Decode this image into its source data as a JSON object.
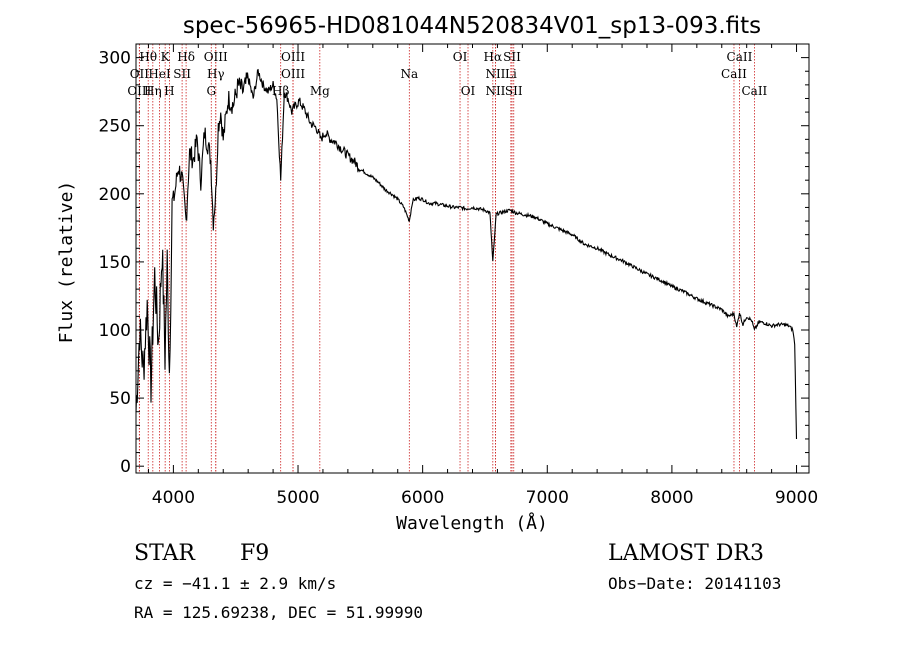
{
  "chart_data": {
    "type": "line",
    "title": "spec-56965-HD081044N520834V01_sp13-093.fits",
    "xlabel": "Wavelength (Å)",
    "ylabel": "Flux (relative)",
    "xlim": [
      3700,
      9100
    ],
    "ylim": [
      -5,
      310
    ],
    "xticks": [
      4000,
      5000,
      6000,
      7000,
      8000,
      9000
    ],
    "yticks": [
      0,
      50,
      100,
      150,
      200,
      250,
      300
    ],
    "xtick_labels": [
      "4000",
      "5000",
      "6000",
      "7000",
      "8000",
      "9000"
    ],
    "ytick_labels": [
      "0",
      "50",
      "100",
      "150",
      "200",
      "250",
      "300"
    ],
    "series": [
      {
        "name": "flux",
        "x": [
          3700,
          3730,
          3760,
          3790,
          3820,
          3850,
          3880,
          3910,
          3933,
          3950,
          3968,
          3990,
          4010,
          4040,
          4070,
          4102,
          4130,
          4160,
          4190,
          4220,
          4250,
          4280,
          4300,
          4320,
          4340,
          4360,
          4380,
          4400,
          4440,
          4480,
          4520,
          4560,
          4600,
          4640,
          4680,
          4720,
          4760,
          4800,
          4830,
          4861,
          4890,
          4920,
          4950,
          4980,
          5010,
          5050,
          5100,
          5150,
          5183,
          5220,
          5260,
          5300,
          5350,
          5400,
          5450,
          5500,
          5550,
          5600,
          5650,
          5700,
          5750,
          5800,
          5850,
          5893,
          5920,
          5960,
          6000,
          6050,
          6100,
          6150,
          6200,
          6250,
          6300,
          6350,
          6400,
          6450,
          6500,
          6540,
          6563,
          6590,
          6620,
          6660,
          6700,
          6750,
          6800,
          6850,
          6900,
          7000,
          7100,
          7200,
          7300,
          7400,
          7500,
          7600,
          7700,
          7800,
          7900,
          8000,
          8100,
          8200,
          8300,
          8400,
          8450,
          8498,
          8520,
          8542,
          8570,
          8600,
          8640,
          8662,
          8700,
          8750,
          8800,
          8850,
          8900,
          8940,
          8970,
          8985,
          9000
        ],
        "values": [
          40,
          100,
          70,
          120,
          60,
          140,
          90,
          160,
          80,
          150,
          70,
          190,
          200,
          220,
          210,
          180,
          230,
          225,
          240,
          210,
          245,
          235,
          225,
          180,
          200,
          250,
          260,
          240,
          270,
          265,
          280,
          275,
          285,
          270,
          290,
          280,
          275,
          280,
          270,
          210,
          275,
          270,
          260,
          265,
          268,
          262,
          252,
          248,
          240,
          245,
          240,
          238,
          233,
          228,
          224,
          218,
          215,
          212,
          208,
          203,
          200,
          196,
          190,
          180,
          195,
          197,
          196,
          193,
          193,
          192,
          191,
          190,
          190,
          189,
          190,
          189,
          188,
          186,
          150,
          185,
          186,
          187,
          188,
          186,
          185,
          184,
          183,
          178,
          174,
          170,
          163,
          160,
          155,
          151,
          146,
          141,
          137,
          132,
          128,
          123,
          119,
          115,
          110,
          112,
          102,
          113,
          104,
          110,
          107,
          100,
          106,
          105,
          103,
          104,
          104,
          103,
          100,
          90,
          20
        ]
      }
    ],
    "line_ids": [
      {
        "label": "Hθ",
        "x": 3798,
        "row": 1
      },
      {
        "label": "OII",
        "x": 3727,
        "row": 2
      },
      {
        "label": "OIII",
        "x": 3727,
        "row": 3
      },
      {
        "label": "K",
        "x": 3934,
        "row": 1
      },
      {
        "label": "HeI",
        "x": 3889,
        "row": 2
      },
      {
        "label": "Hη",
        "x": 3835,
        "row": 3
      },
      {
        "label": "SII",
        "x": 4070,
        "row": 2
      },
      {
        "label": "H",
        "x": 3968,
        "row": 3
      },
      {
        "label": "Hδ",
        "x": 4102,
        "row": 1
      },
      {
        "label": "OIII",
        "x": 4340,
        "row": 1
      },
      {
        "label": "Hγ",
        "x": 4340,
        "row": 2
      },
      {
        "label": "G",
        "x": 4304,
        "row": 3
      },
      {
        "label": "OIII",
        "x": 4960,
        "row": 1
      },
      {
        "label": "OIII",
        "x": 4960,
        "row": 2
      },
      {
        "label": "Hβ",
        "x": 4861,
        "row": 3
      },
      {
        "label": "Mg",
        "x": 5175,
        "row": 3
      },
      {
        "label": "Na",
        "x": 5893,
        "row": 2
      },
      {
        "label": "OI",
        "x": 6300,
        "row": 1
      },
      {
        "label": "OI",
        "x": 6364,
        "row": 3
      },
      {
        "label": "Hα",
        "x": 6563,
        "row": 1
      },
      {
        "label": "NII",
        "x": 6584,
        "row": 2
      },
      {
        "label": "NII",
        "x": 6584,
        "row": 3
      },
      {
        "label": "SII",
        "x": 6717,
        "row": 1
      },
      {
        "label": "Li",
        "x": 6708,
        "row": 2
      },
      {
        "label": "SII",
        "x": 6731,
        "row": 3
      },
      {
        "label": "CaII",
        "x": 8542,
        "row": 1
      },
      {
        "label": "CaII",
        "x": 8498,
        "row": 2
      },
      {
        "label": "CaII",
        "x": 8662,
        "row": 3
      }
    ],
    "grid": false,
    "legend": "none"
  },
  "info": {
    "object_class": "STAR",
    "subclass": "F9",
    "survey": "LAMOST DR3",
    "cz": "cz = −41.1 ± 2.9 km/s",
    "obs_date": "Obs−Date: 20141103",
    "radec": "RA = 125.69238, DEC =  51.99990"
  },
  "colors": {
    "spectrum": "#000000",
    "line_markers": "#cc2222",
    "frame": "#000000"
  }
}
